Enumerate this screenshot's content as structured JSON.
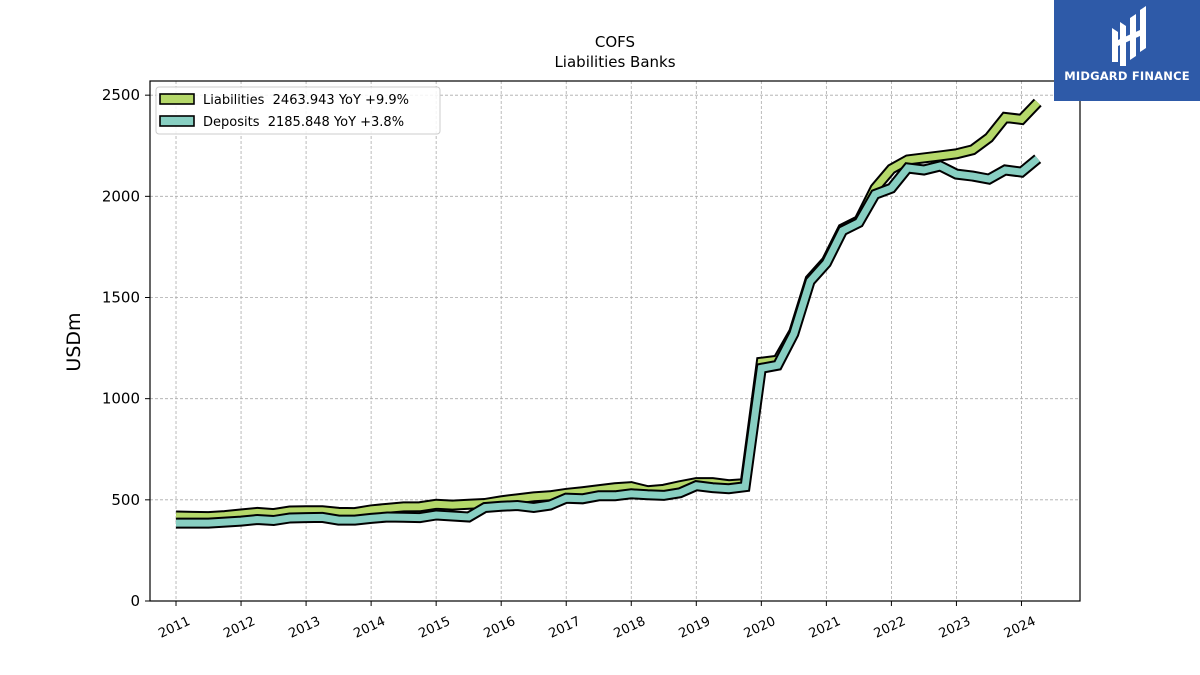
{
  "logo": {
    "text": "MIDGARD FINANCE"
  },
  "chart_data": {
    "type": "line",
    "title": "COFS",
    "subtitle": "Liabilities Banks",
    "ylabel": "USDm",
    "xlabel": "",
    "ylim": [
      0,
      2570
    ],
    "xlim": [
      2010.6,
      2024.9
    ],
    "yticks": [
      0,
      500,
      1000,
      1500,
      2000,
      2500
    ],
    "xticks": [
      "2011",
      "2012",
      "2013",
      "2014",
      "2015",
      "2016",
      "2017",
      "2018",
      "2019",
      "2020",
      "2021",
      "2022",
      "2023",
      "2024"
    ],
    "grid": true,
    "legend_position": "top-left",
    "series": [
      {
        "name": "Liabilities  2463.943 YoY +9.9%",
        "color": "#b5d86a",
        "x": [
          2011.0,
          2011.25,
          2011.5,
          2011.75,
          2012.0,
          2012.25,
          2012.5,
          2012.75,
          2013.0,
          2013.25,
          2013.5,
          2013.75,
          2014.0,
          2014.25,
          2014.5,
          2014.75,
          2015.0,
          2015.25,
          2015.5,
          2015.75,
          2016.0,
          2016.25,
          2016.5,
          2016.75,
          2017.0,
          2017.25,
          2017.5,
          2017.75,
          2018.0,
          2018.25,
          2018.5,
          2018.75,
          2019.0,
          2019.25,
          2019.5,
          2019.75,
          2020.0,
          2020.25,
          2020.5,
          2020.75,
          2021.0,
          2021.25,
          2021.5,
          2021.75,
          2022.0,
          2022.25,
          2022.5,
          2022.75,
          2023.0,
          2023.25,
          2023.5,
          2023.75,
          2024.0,
          2024.25
        ],
        "values": [
          420,
          418,
          417,
          422,
          430,
          438,
          432,
          445,
          446,
          446,
          438,
          437,
          450,
          458,
          465,
          466,
          478,
          474,
          478,
          482,
          495,
          505,
          515,
          520,
          532,
          540,
          550,
          560,
          565,
          545,
          552,
          570,
          585,
          585,
          575,
          580,
          1180,
          1190,
          1330,
          1590,
          1680,
          1840,
          1880,
          2040,
          2135,
          2180,
          2190,
          2200,
          2210,
          2230,
          2290,
          2390,
          2380,
          2463.943
        ]
      },
      {
        "name": "Deposits  2185.848 YoY +3.8%",
        "color": "#88cfc2",
        "x": [
          2011.0,
          2011.25,
          2011.5,
          2011.75,
          2012.0,
          2012.25,
          2012.5,
          2012.75,
          2013.0,
          2013.25,
          2013.5,
          2013.75,
          2014.0,
          2014.25,
          2014.5,
          2014.75,
          2015.0,
          2015.25,
          2015.5,
          2015.75,
          2016.0,
          2016.25,
          2016.5,
          2016.75,
          2017.0,
          2017.25,
          2017.5,
          2017.75,
          2018.0,
          2018.25,
          2018.5,
          2018.75,
          2019.0,
          2019.25,
          2019.5,
          2019.75,
          2020.0,
          2020.25,
          2020.5,
          2020.75,
          2021.0,
          2021.25,
          2021.5,
          2021.75,
          2022.0,
          2022.25,
          2022.5,
          2022.75,
          2023.0,
          2023.25,
          2023.5,
          2023.75,
          2024.0,
          2024.25
        ],
        "values": [
          385,
          385,
          385,
          390,
          395,
          403,
          398,
          410,
          412,
          413,
          400,
          400,
          408,
          415,
          414,
          412,
          425,
          420,
          415,
          462,
          468,
          472,
          462,
          474,
          508,
          505,
          520,
          520,
          530,
          525,
          522,
          535,
          570,
          560,
          555,
          565,
          1150,
          1165,
          1320,
          1580,
          1670,
          1830,
          1870,
          2010,
          2040,
          2140,
          2130,
          2150,
          2110,
          2100,
          2085,
          2130,
          2120,
          2185.848
        ]
      }
    ]
  }
}
